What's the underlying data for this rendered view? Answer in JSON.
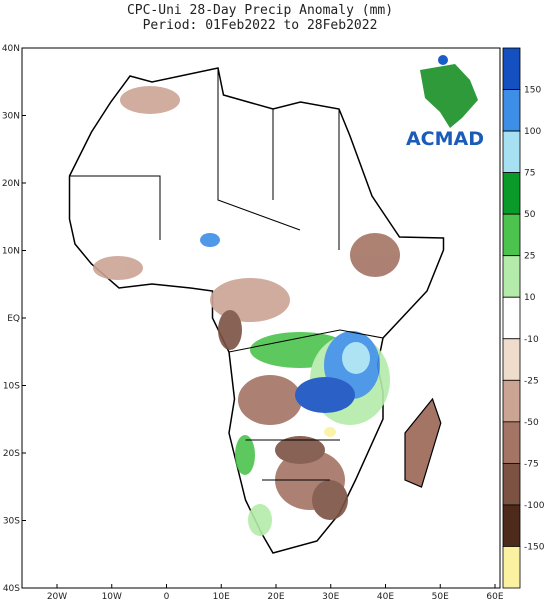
{
  "header": {
    "title": "CPC-Uni 28-Day Precip Anomaly (mm)",
    "subtitle": "Period: 01Feb2022 to 28Feb2022"
  },
  "map": {
    "lat_labels": [
      "40N",
      "30N",
      "20N",
      "10N",
      "EQ",
      "10S",
      "20S",
      "30S",
      "40S"
    ],
    "lon_labels": [
      "20W",
      "10W",
      "0",
      "10E",
      "20E",
      "30E",
      "40E",
      "50E",
      "60E"
    ]
  },
  "logo": {
    "text": "ACMAD"
  },
  "legend": {
    "levels": [
      150,
      100,
      75,
      50,
      25,
      10,
      -10,
      -25,
      -50,
      -75,
      -100,
      -150
    ],
    "colors": [
      "#1550c0",
      "#3c8ee6",
      "#a6e0f2",
      "#0a9a2a",
      "#4cc34c",
      "#b4ebaa",
      "#ffffff",
      "#f0dccc",
      "#cba494",
      "#a47464",
      "#7c5242",
      "#4e2a1a",
      "#faf2a0"
    ]
  }
}
